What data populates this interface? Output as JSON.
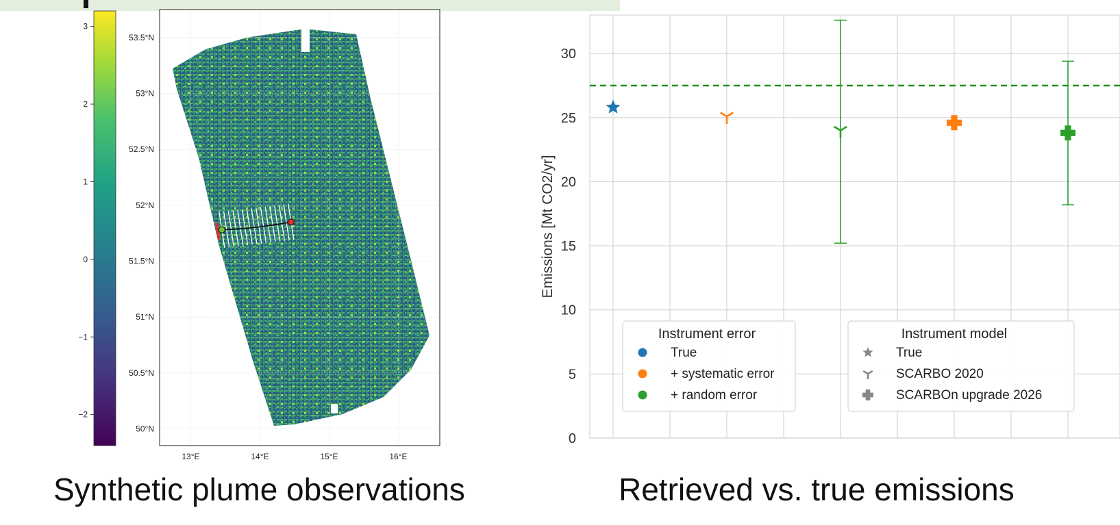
{
  "captions": {
    "left": "Synthetic plume observations",
    "right": "Retrieved vs. true emissions"
  },
  "colors": {
    "banner": "#e3efdc",
    "truth_line": "#1e8f1e",
    "blue": "#1f77b4",
    "orange": "#ff7f0e",
    "green": "#2ca02c",
    "legend_marker": "#888888"
  },
  "chart_data": [
    {
      "type": "heatmap",
      "description_kind": "satellite swath map",
      "colormap": "viridis",
      "colorbar_ticks": [
        "3",
        "2",
        "1",
        "0",
        "−1",
        "−2"
      ],
      "colorbar_range": [
        -2.4,
        3.2
      ],
      "lat_ticks": [
        "53.5°N",
        "53°N",
        "52.5°N",
        "52°N",
        "51.5°N",
        "51°N",
        "50.5°N",
        "50°N"
      ],
      "lon_ticks": [
        "13°E",
        "14°E",
        "15°E",
        "16°E"
      ],
      "source_point": {
        "lon": 13.45,
        "lat": 51.78
      },
      "plume_end_point": {
        "lon": 14.45,
        "lat": 51.85
      },
      "grid": true
    },
    {
      "type": "scatter",
      "ylabel": "Emissions [Mt CO2/yr]",
      "ylim": [
        0,
        33
      ],
      "yticks": [
        0,
        5,
        10,
        15,
        20,
        25,
        30
      ],
      "grid": true,
      "reference_line": {
        "y": 27.5,
        "style": "dashed",
        "color": "#1e8f1e"
      },
      "points": [
        {
          "x": 1,
          "y": 25.8,
          "color": "blue",
          "marker": "star"
        },
        {
          "x": 3,
          "y": 25.1,
          "color": "orange",
          "marker": "tri"
        },
        {
          "x": 5,
          "y": 24.0,
          "color": "green",
          "marker": "tri",
          "err_low": 15.2,
          "err_high": 32.6
        },
        {
          "x": 7,
          "y": 24.6,
          "color": "orange",
          "marker": "plus"
        },
        {
          "x": 9,
          "y": 23.8,
          "color": "green",
          "marker": "plus",
          "err_low": 18.2,
          "err_high": 29.4
        }
      ],
      "legend_error": {
        "title": "Instrument error",
        "entries": [
          {
            "label": "True",
            "color": "blue"
          },
          {
            "label": "+ systematic error",
            "color": "orange"
          },
          {
            "label": "+ random error",
            "color": "green"
          }
        ]
      },
      "legend_model": {
        "title": "Instrument model",
        "entries": [
          {
            "label": "True",
            "marker": "star"
          },
          {
            "label": "SCARBO 2020",
            "marker": "tri"
          },
          {
            "label": "SCARBOn upgrade 2026",
            "marker": "plus"
          }
        ]
      }
    }
  ]
}
